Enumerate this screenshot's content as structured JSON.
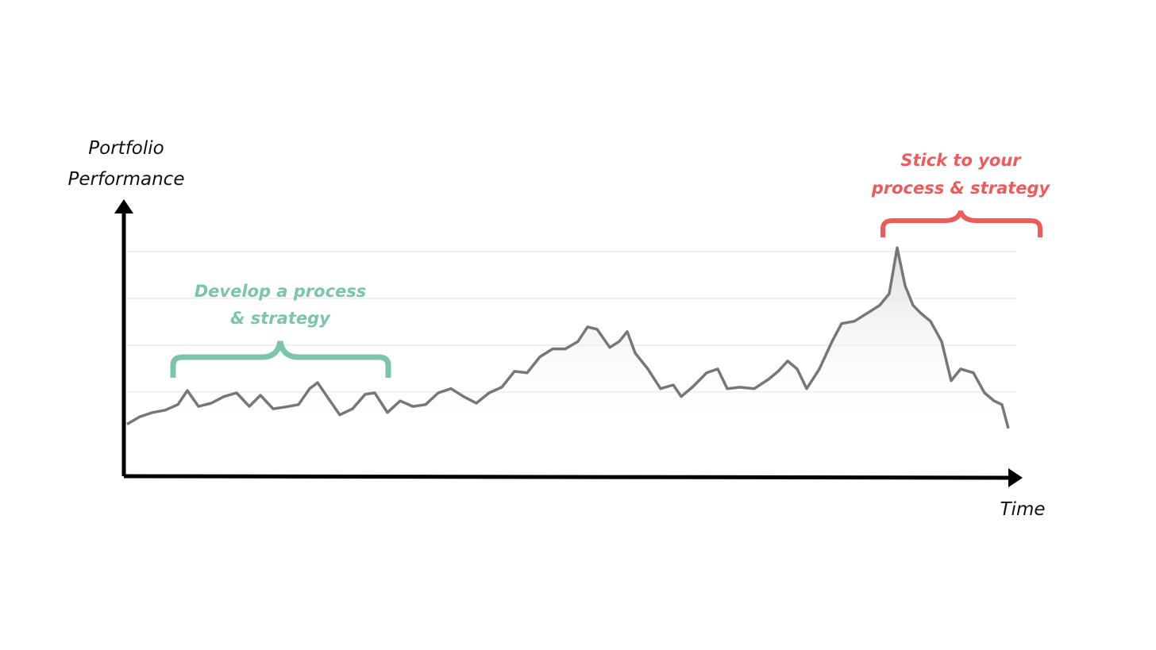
{
  "chart_data": {
    "type": "line",
    "y_label": [
      "Portfolio",
      "Performance"
    ],
    "x_label": "Time",
    "annotations": [
      {
        "text": [
          "Develop a process",
          "& strategy"
        ],
        "color": "#7cc4ac"
      },
      {
        "text": [
          "Stick to your",
          "process & strategy"
        ],
        "color": "#ef5b5b"
      }
    ],
    "color": "#777777",
    "grid": true,
    "xlim": [
      0,
      1110
    ],
    "ylim": [
      -80,
      505
    ],
    "yticks": [
      100,
      200,
      300,
      400
    ],
    "x": [
      0,
      16,
      32,
      48,
      64,
      76,
      90,
      106,
      122,
      138,
      154,
      168,
      184,
      200,
      216,
      230,
      240,
      252,
      268,
      284,
      300,
      312,
      328,
      344,
      360,
      376,
      392,
      408,
      424,
      440,
      456,
      472,
      488,
      504,
      520,
      536,
      552,
      568,
      580,
      592,
      608,
      620,
      630,
      640,
      656,
      672,
      688,
      698,
      712,
      730,
      744,
      756,
      772,
      790,
      808,
      820,
      832,
      844,
      856,
      872,
      888,
      900,
      916,
      932,
      948,
      960,
      970,
      980,
      990,
      1000,
      1012,
      1026,
      1038,
      1050,
      1066,
      1080,
      1092,
      1102,
      1110
    ],
    "values": [
      31,
      47,
      56,
      61,
      73,
      103,
      69,
      76,
      90,
      98,
      69,
      93,
      64,
      68,
      73,
      107,
      120,
      90,
      51,
      64,
      95,
      98,
      56,
      81,
      69,
      73,
      98,
      107,
      90,
      76,
      98,
      110,
      144,
      141,
      175,
      192,
      192,
      208,
      239,
      234,
      195,
      208,
      229,
      183,
      149,
      107,
      115,
      90,
      110,
      141,
      149,
      107,
      110,
      107,
      127,
      144,
      166,
      149,
      107,
      149,
      208,
      246,
      251,
      268,
      285,
      310,
      408,
      327,
      285,
      268,
      251,
      208,
      124,
      149,
      141,
      98,
      81,
      73,
      22
    ]
  }
}
